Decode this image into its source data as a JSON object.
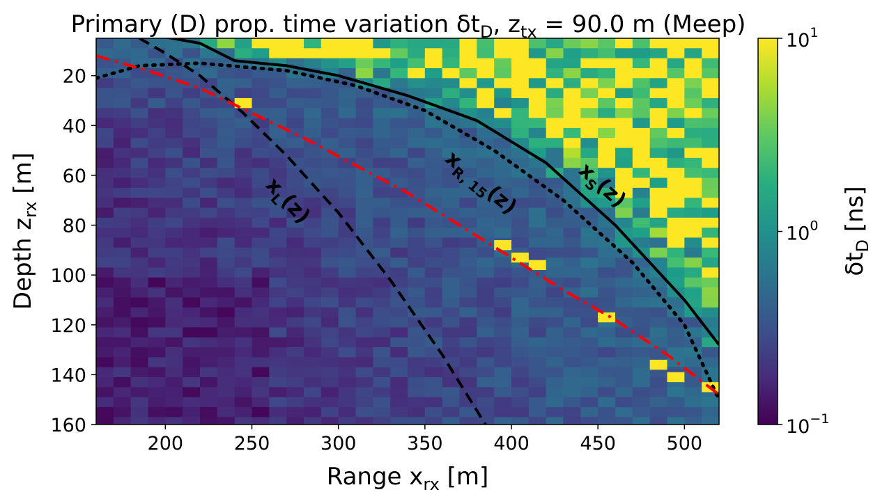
{
  "chart_data": {
    "type": "heatmap",
    "title": "Primary (D) prop. time variation δt",
    "title_sub": "D",
    "title_mid": ", z",
    "title_sub2": "tx",
    "title_end": " = 90.0 m (Meep)",
    "xlabel": "Range x",
    "xlabel_sub": "rx",
    "xlabel_unit": " [m]",
    "ylabel": "Depth z",
    "ylabel_sub": "rx",
    "ylabel_unit": " [m]",
    "xlim": [
      160,
      520
    ],
    "ylim": [
      160,
      5
    ],
    "y_inverted": true,
    "x_ticks": [
      "200",
      "250",
      "300",
      "350",
      "400",
      "450",
      "500"
    ],
    "y_ticks": [
      "20",
      "40",
      "60",
      "80",
      "100",
      "120",
      "140",
      "160"
    ],
    "grid": false,
    "colorbar": {
      "label": "δt",
      "label_sub": "D",
      "label_unit": " [ns]",
      "scale": "log",
      "range": [
        0.1,
        10
      ],
      "colormap": "viridis",
      "ticks": [
        {
          "base": "10",
          "exp": "1",
          "value": 10
        },
        {
          "base": "10",
          "exp": "0",
          "value": 1
        },
        {
          "base": "10",
          "exp": "−1",
          "value": 0.1
        }
      ]
    },
    "grid_cell": {
      "dx": 10,
      "dz": 4,
      "x0": 160,
      "z0": 5
    },
    "curves": [
      {
        "name": "x_L(z)",
        "style": "dashed",
        "color": "#000000",
        "points": [
          [
            185,
            5
          ],
          [
            200,
            11
          ],
          [
            220,
            20
          ],
          [
            245,
            35
          ],
          [
            270,
            52
          ],
          [
            300,
            75
          ],
          [
            330,
            102
          ],
          [
            360,
            132
          ],
          [
            385,
            160
          ]
        ]
      },
      {
        "name": "x_S(z)",
        "style": "solid",
        "color": "#000000",
        "points": [
          [
            180,
            2
          ],
          [
            220,
            7
          ],
          [
            240,
            14
          ],
          [
            270,
            16
          ],
          [
            300,
            20
          ],
          [
            340,
            28
          ],
          [
            380,
            38
          ],
          [
            420,
            55
          ],
          [
            460,
            80
          ],
          [
            500,
            110
          ],
          [
            520,
            128
          ]
        ]
      },
      {
        "name": "x_R,15(z)",
        "style": "dotted",
        "color": "#000000",
        "points": [
          [
            160,
            21
          ],
          [
            185,
            16
          ],
          [
            220,
            15
          ],
          [
            270,
            18
          ],
          [
            310,
            24
          ],
          [
            350,
            34
          ],
          [
            390,
            50
          ],
          [
            430,
            70
          ],
          [
            470,
            95
          ],
          [
            500,
            120
          ],
          [
            520,
            150
          ]
        ]
      },
      {
        "name": "red-dashdot",
        "style": "dashdot",
        "color": "#ff0000",
        "points": [
          [
            160,
            12
          ],
          [
            190,
            18
          ],
          [
            220,
            25
          ],
          [
            250,
            35
          ],
          [
            280,
            45
          ],
          [
            310,
            56
          ],
          [
            340,
            67
          ],
          [
            370,
            80
          ],
          [
            400,
            93
          ],
          [
            430,
            106
          ],
          [
            460,
            118
          ],
          [
            490,
            132
          ],
          [
            520,
            148
          ]
        ]
      }
    ],
    "annotations": [
      {
        "text": "x",
        "sub": "L",
        "tail": "(z)",
        "x": 268,
        "z": 72,
        "rotate": 47
      },
      {
        "text": "x",
        "sub": "R, 15",
        "tail": "(z)",
        "x": 380,
        "z": 65,
        "rotate": 40
      },
      {
        "text": "x",
        "sub": "S",
        "tail": "(z)",
        "x": 450,
        "z": 66,
        "rotate": 42
      }
    ]
  }
}
